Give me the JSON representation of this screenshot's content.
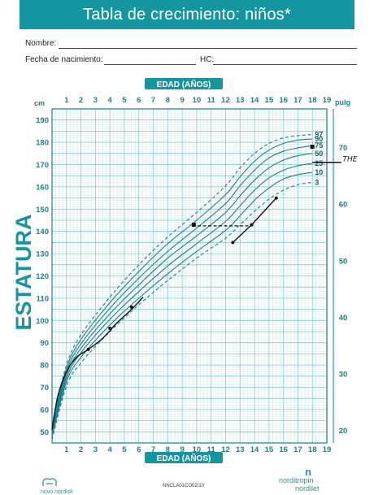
{
  "header": {
    "title": "Tabla de crecimiento: niños*"
  },
  "form": {
    "name_label": "Nombre:",
    "birth_label": "Fecha de nacimiento:",
    "hc_label": "HC:"
  },
  "chart_data": {
    "type": "line",
    "title": "",
    "ylabel": "ESTATURA",
    "xlabel_top": "EDAD (AÑOS)",
    "xlabel_bottom": "EDAD (AÑOS)",
    "y_unit_left": "cm",
    "y_unit_right": "pulg",
    "xlim": [
      0,
      19
    ],
    "ylim": [
      45,
      195
    ],
    "x_ticks": [
      1,
      2,
      3,
      4,
      5,
      6,
      7,
      8,
      9,
      10,
      11,
      12,
      13,
      14,
      15,
      16,
      17,
      18,
      19
    ],
    "y_ticks_cm": [
      50,
      60,
      70,
      80,
      90,
      100,
      110,
      120,
      130,
      140,
      150,
      160,
      170,
      180,
      190
    ],
    "y_ticks_in": [
      20,
      30,
      40,
      50,
      60,
      70
    ],
    "grid": true,
    "series": [
      {
        "name": "3",
        "style": "dashed",
        "x": [
          0,
          1,
          2,
          4,
          6,
          8,
          10,
          12,
          13,
          14,
          15,
          16,
          17,
          18
        ],
        "y": [
          46.5,
          70.5,
          81,
          95,
          107,
          118,
          128,
          137,
          143,
          149,
          154.5,
          158.5,
          161,
          162
        ]
      },
      {
        "name": "10",
        "style": "solid",
        "x": [
          0,
          1,
          2,
          4,
          6,
          8,
          10,
          12,
          13,
          14,
          15,
          16,
          17,
          18
        ],
        "y": [
          48,
          72.5,
          83.5,
          98,
          110,
          121,
          131,
          140.5,
          147,
          154,
          159.5,
          163.5,
          165.5,
          166.5
        ]
      },
      {
        "name": "25",
        "style": "solid",
        "x": [
          0,
          1,
          2,
          4,
          6,
          8,
          10,
          12,
          13,
          14,
          15,
          16,
          17,
          18
        ],
        "y": [
          49,
          74,
          85.5,
          100.5,
          113,
          124.5,
          134.5,
          144.5,
          151.5,
          158.5,
          164,
          167.5,
          169.5,
          170.5
        ]
      },
      {
        "name": "50",
        "style": "solid",
        "x": [
          0,
          1,
          2,
          4,
          6,
          8,
          10,
          12,
          13,
          14,
          15,
          16,
          17,
          18
        ],
        "y": [
          50,
          75.5,
          87.5,
          103,
          116,
          128,
          138,
          148.5,
          156,
          163,
          168.5,
          172,
          174,
          175
        ]
      },
      {
        "name": "75",
        "style": "solid",
        "x": [
          0,
          1,
          2,
          4,
          6,
          8,
          10,
          12,
          13,
          14,
          15,
          16,
          17,
          18
        ],
        "y": [
          51.5,
          77,
          89.5,
          105.5,
          119,
          131,
          141.5,
          152.5,
          160.5,
          167.5,
          173,
          176,
          177.5,
          178.5
        ]
      },
      {
        "name": "90",
        "style": "solid",
        "x": [
          0,
          1,
          2,
          4,
          6,
          8,
          10,
          12,
          13,
          14,
          15,
          16,
          17,
          18
        ],
        "y": [
          52.5,
          78.5,
          91.5,
          108,
          122,
          134.5,
          145,
          156.5,
          164.5,
          171.5,
          176.5,
          179.5,
          181,
          181.5
        ]
      },
      {
        "name": "97",
        "style": "dashed",
        "x": [
          0,
          1,
          2,
          4,
          6,
          8,
          10,
          12,
          13,
          14,
          15,
          16,
          17,
          18
        ],
        "y": [
          53.5,
          80,
          93.5,
          110.5,
          125,
          137.5,
          148.5,
          160.5,
          168.5,
          175,
          179.5,
          182,
          183,
          183.5
        ]
      }
    ],
    "patient_curve": {
      "x": [
        0,
        0.4,
        1,
        1.7,
        2.5,
        3.5,
        4.5,
        5.5,
        6.3
      ],
      "y": [
        51,
        66,
        77,
        83.5,
        87,
        92,
        99,
        105,
        110.5
      ]
    },
    "patient_points": {
      "x": [
        2.5,
        4,
        5.5,
        12.5,
        13.8,
        15.5
      ],
      "y": [
        87,
        96.5,
        106,
        135,
        143,
        155
      ]
    },
    "patient_segments": [
      {
        "x": [
          9.7,
          13.9
        ],
        "y": [
          142.5,
          142.5
        ],
        "style": "dashed"
      },
      {
        "x": [
          12.5,
          13.8,
          15.5
        ],
        "y": [
          135,
          143,
          155
        ],
        "style": "solid"
      },
      {
        "x": [
          18,
          20
        ],
        "y": [
          171,
          171
        ],
        "style": "solid"
      }
    ],
    "marker_points": {
      "x": [
        9.8,
        18
      ],
      "y": [
        143,
        178
      ]
    },
    "annotations": [
      {
        "text": "THE",
        "x": 20.6,
        "y": 171.5
      }
    ]
  },
  "footer": {
    "left_brand": "novo nordisk",
    "right_brand_line1": "norditropin",
    "right_brand_line2": "nordilet",
    "code": "NNCLA01CO02/10"
  },
  "colors": {
    "teal": "#1595a0",
    "grid_minor": "#bfe3e6",
    "grid_major": "#7fc7cd",
    "curve": "#1a7f8c",
    "ink": "#111111"
  }
}
